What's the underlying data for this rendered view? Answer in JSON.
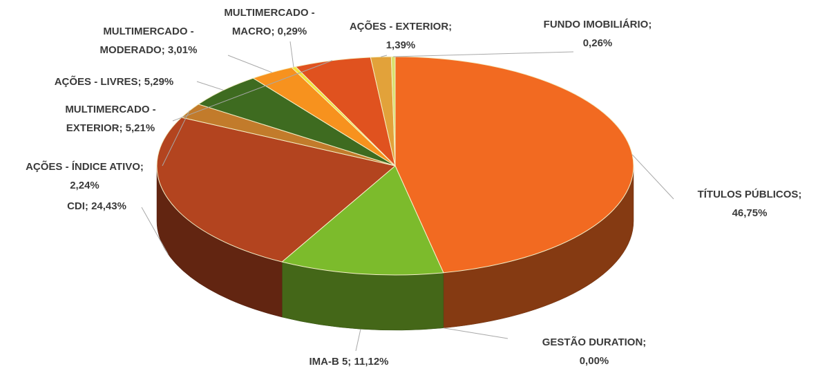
{
  "chart_data": {
    "type": "pie3d",
    "categories": [
      "TÍTULOS PÚBLICOS;",
      "GESTÃO DURATION;",
      "IMA-B 5;",
      "CDI;",
      "AÇÕES - ÍNDICE ATIVO;",
      "AÇÕES - LIVRES;",
      "MULTIMERCADO - MODERADO;",
      "MULTIMERCADO - MACRO;",
      "MULTIMERCADO - EXTERIOR;",
      "AÇÕES - EXTERIOR;",
      "FUNDO IMOBILIÁRIO;"
    ],
    "values": [
      46.75,
      0,
      11.12,
      24.43,
      2.24,
      5.29,
      3.01,
      0.29,
      5.21,
      1.39,
      0.26
    ],
    "value_labels": [
      "46,75%",
      "0,00%",
      "11,12%",
      "24,43%",
      "2,24%",
      "5,29%",
      "3,01%",
      "0,29%",
      "5,21%",
      "1,39%",
      "0,26%"
    ],
    "colors": [
      "#f26a21",
      "#a0a0a0",
      "#7cbb2c",
      "#b3441f",
      "#c27b2b",
      "#3e6b20",
      "#f7921e",
      "#f2e33c",
      "#e0521f",
      "#e2a23a",
      "#d8e06e"
    ]
  }
}
